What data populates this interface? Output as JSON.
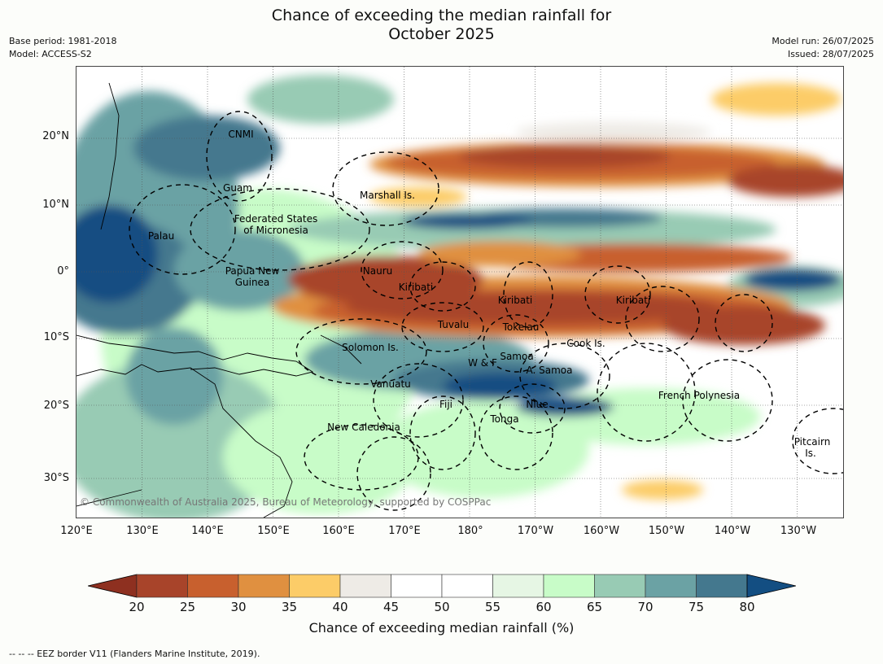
{
  "title_line1": "Chance of exceeding the median rainfall for",
  "title_line2": "October 2025",
  "meta": {
    "base_period": "Base period: 1981-2018",
    "model": "Model: ACCESS-S2",
    "model_run": "Model run: 26/07/2025",
    "issued": "Issued: 28/07/2025"
  },
  "lat_labels": [
    "20°N",
    "10°N",
    "0°",
    "10°S",
    "20°S",
    "30°S"
  ],
  "lon_labels": [
    "120°E",
    "130°E",
    "140°E",
    "150°E",
    "160°E",
    "170°E",
    "180°",
    "170°W",
    "160°W",
    "150°W",
    "140°W",
    "130°W"
  ],
  "places": [
    "CNMI",
    "Guam",
    "Marshall Is.",
    "Federated States",
    "of Micronesia",
    "Palau",
    "Papua New",
    "Guinea",
    "Nauru",
    "Kiribati",
    "Kiribati",
    "Kiribati",
    "Tuvalu",
    "Tokelau",
    "Cook Is.",
    "Solomon Is.",
    "W & F",
    "Samoa",
    "A. Samoa",
    "Vanuatu",
    "Fiji",
    "Niue",
    "Tonga",
    "French Polynesia",
    "New Caledonia",
    "Pitcairn",
    "Is."
  ],
  "copyright": "© Commonwealth of Australia 2025, Bureau of Meteorology, supported by COSPPac",
  "colorbar": {
    "ticks": [
      "20",
      "25",
      "30",
      "35",
      "40",
      "45",
      "50",
      "55",
      "60",
      "65",
      "70",
      "75",
      "80"
    ],
    "colors": [
      "#a8442a",
      "#c8602e",
      "#e09040",
      "#fccc68",
      "#eeebe6",
      "#ffffff",
      "#ffffff",
      "#e6f6e4",
      "#c8fcc8",
      "#98cbb4",
      "#6ba2a4",
      "#44788e",
      "#134e82"
    ],
    "low_color": "#8e3020",
    "high_color": "#0f4c86",
    "label": "Chance of exceeding median rainfall (%)"
  },
  "footnote": "--  --  -- EEZ border V11 (Flanders Marine Institute, 2019)."
}
